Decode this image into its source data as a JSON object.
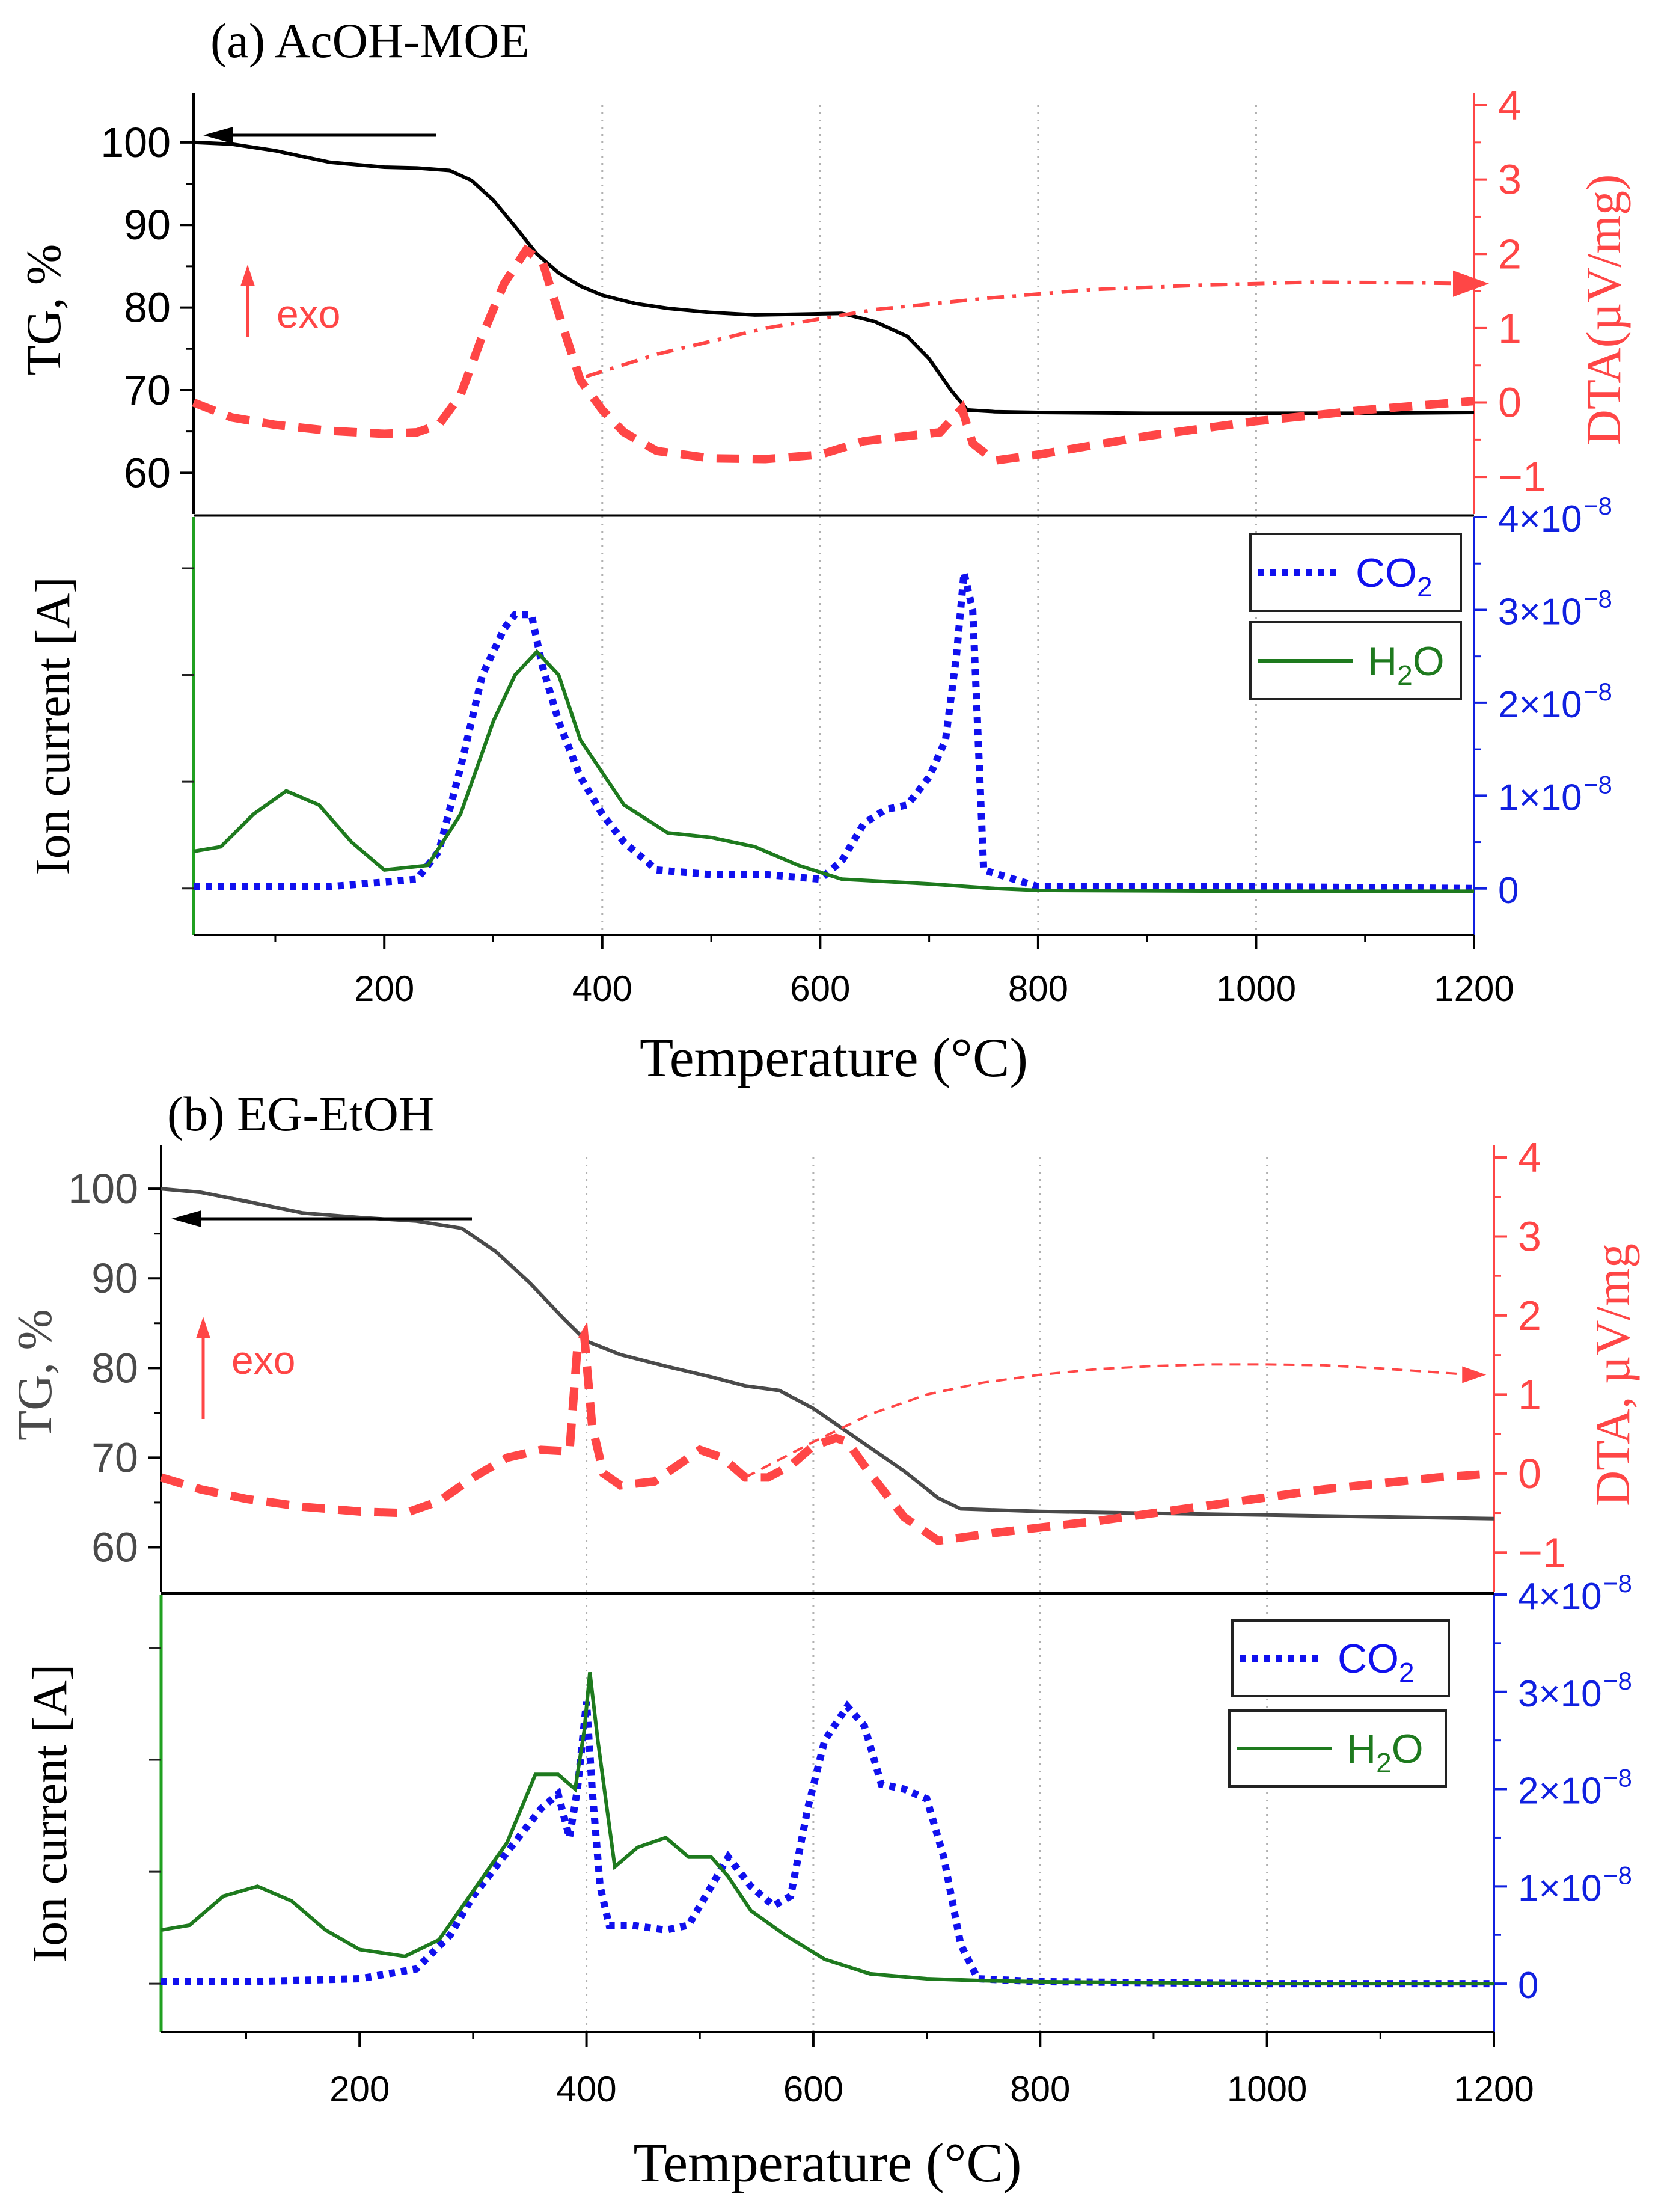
{
  "colors": {
    "tg": "#000000",
    "tg_b": "#4a4a4a",
    "dta": "#ff4646",
    "co2": "#1010ee",
    "h2o": "#1e7a1e",
    "axis_green": "#20a020",
    "axis_blue": "#1020e0",
    "grid": "#b0b0b0"
  },
  "panels": [
    {
      "title": "(a) AcOH-MOE",
      "xlabel": "Temperature (°C)",
      "x_ticks": [
        "200",
        "400",
        "600",
        "800",
        "1000",
        "1200"
      ],
      "tg_axis": {
        "label": "TG, %",
        "ticks": [
          "60",
          "70",
          "80",
          "90",
          "100"
        ]
      },
      "dta_axis": {
        "label": "DTA(µV/mg)",
        "ticks": [
          "−1",
          "0",
          "1",
          "2",
          "3",
          "4"
        ]
      },
      "ion_axis": {
        "label": "Ion current [A]",
        "ticks": [
          "0",
          "1×10",
          "2×10",
          "3×10",
          "4×10"
        ],
        "exponent": "−8"
      },
      "exo_label": "exo",
      "legend": {
        "co2": "CO",
        "co2_sub": "2",
        "h2o_pre": "H",
        "h2o_sub": "2",
        "h2o_post": "O"
      }
    },
    {
      "title": "(b) EG-EtOH",
      "xlabel": "Temperature (°C)",
      "x_ticks": [
        "200",
        "400",
        "600",
        "800",
        "1000",
        "1200"
      ],
      "tg_axis": {
        "label": "TG, %",
        "ticks": [
          "60",
          "70",
          "80",
          "90",
          "100"
        ]
      },
      "dta_axis": {
        "label": "DTA, µV/mg",
        "ticks": [
          "−1",
          "0",
          "1",
          "2",
          "3",
          "4"
        ]
      },
      "ion_axis": {
        "label": "Ion current [A]",
        "ticks": [
          "0",
          "1×10",
          "2×10",
          "3×10",
          "4×10"
        ],
        "exponent": "−8"
      },
      "exo_label": "exo",
      "legend": {
        "co2": "CO",
        "co2_sub": "2",
        "h2o_pre": "H",
        "h2o_sub": "2",
        "h2o_post": "O"
      }
    }
  ],
  "chart_data": [
    {
      "type": "line",
      "title": "(a) AcOH-MOE — TG / DTA",
      "xlabel": "Temperature (°C)",
      "xlim": [
        25,
        1200
      ],
      "ylim_left": [
        55,
        104.5
      ],
      "ylim_right": [
        -1.5,
        4
      ],
      "series": [
        {
          "name": "TG",
          "axis": "left",
          "style": "solid",
          "x": [
            25,
            60,
            100,
            150,
            200,
            230,
            260,
            280,
            300,
            320,
            340,
            360,
            380,
            400,
            430,
            460,
            500,
            540,
            580,
            620,
            650,
            680,
            700,
            720,
            735,
            760,
            800,
            900,
            1000,
            1100,
            1200
          ],
          "y": [
            100,
            99.8,
            99,
            97.6,
            97.0,
            96.9,
            96.6,
            95.4,
            93.0,
            89.8,
            86.5,
            84.2,
            82.6,
            81.5,
            80.5,
            79.9,
            79.4,
            79.1,
            79.2,
            79.3,
            78.3,
            76.5,
            73.8,
            70.0,
            67.6,
            67.4,
            67.3,
            67.2,
            67.2,
            67.2,
            67.3
          ]
        },
        {
          "name": "DTA",
          "axis": "right",
          "style": "dashed",
          "x": [
            25,
            60,
            100,
            150,
            200,
            230,
            250,
            270,
            290,
            310,
            330,
            345,
            360,
            380,
            400,
            420,
            450,
            500,
            550,
            600,
            640,
            680,
            710,
            730,
            740,
            760,
            800,
            900,
            1000,
            1100,
            1200
          ],
          "y": [
            0,
            -0.2,
            -0.3,
            -0.38,
            -0.42,
            -0.4,
            -0.3,
            0.1,
            0.9,
            1.6,
            2.05,
            1.9,
            1.2,
            0.3,
            -0.1,
            -0.4,
            -0.65,
            -0.75,
            -0.76,
            -0.7,
            -0.52,
            -0.45,
            -0.4,
            -0.08,
            -0.55,
            -0.78,
            -0.7,
            -0.45,
            -0.25,
            -0.1,
            0.02
          ]
        },
        {
          "name": "DTA baseline",
          "axis": "right",
          "style": "dash-dot",
          "x": [
            385,
            450,
            550,
            650,
            750,
            850,
            950,
            1050,
            1150,
            1200
          ],
          "y": [
            0.35,
            0.65,
            1.0,
            1.25,
            1.4,
            1.52,
            1.58,
            1.62,
            1.61,
            1.6
          ]
        }
      ]
    },
    {
      "type": "line",
      "title": "(a) AcOH-MOE — Ion current",
      "xlabel": "Temperature (°C)",
      "xlim": [
        25,
        1200
      ],
      "ylim": [
        -5e-09,
        4e-08
      ],
      "series": [
        {
          "name": "CO2",
          "style": "dotted",
          "x": [
            25,
            150,
            230,
            250,
            270,
            290,
            310,
            320,
            335,
            345,
            360,
            380,
            400,
            420,
            450,
            500,
            550,
            600,
            620,
            640,
            660,
            680,
            700,
            715,
            725,
            732,
            740,
            750,
            800,
            1000,
            1200
          ],
          "y": [
            2e-10,
            2e-10,
            1e-09,
            4e-09,
            1.3e-08,
            2.3e-08,
            2.8e-08,
            2.95e-08,
            2.95e-08,
            2.4e-08,
            1.8e-08,
            1.2e-08,
            8e-09,
            5e-09,
            2e-09,
            1.5e-09,
            1.5e-09,
            1e-09,
            3e-09,
            7e-09,
            8.5e-09,
            9e-09,
            1.2e-08,
            1.6e-08,
            2.5e-08,
            3.4e-08,
            3e-08,
            2e-09,
            2e-10,
            2e-10,
            0.0
          ]
        },
        {
          "name": "H2O",
          "style": "solid",
          "x": [
            25,
            50,
            80,
            110,
            140,
            170,
            200,
            240,
            270,
            300,
            320,
            340,
            360,
            380,
            420,
            460,
            500,
            540,
            580,
            620,
            700,
            760,
            800,
            1000,
            1200
          ],
          "y": [
            4e-09,
            4.5e-09,
            8e-09,
            1.05e-08,
            9e-09,
            5e-09,
            2e-09,
            2.5e-09,
            8e-09,
            1.8e-08,
            2.3e-08,
            2.55e-08,
            2.3e-08,
            1.6e-08,
            9e-09,
            6e-09,
            5.5e-09,
            4.5e-09,
            2.5e-09,
            1e-09,
            5e-10,
            0.0,
            -2e-10,
            -3e-10,
            -3e-10
          ]
        }
      ]
    },
    {
      "type": "line",
      "title": "(b) EG-EtOH — TG / DTA",
      "xlabel": "Temperature (°C)",
      "xlim": [
        25,
        1200
      ],
      "ylim_left": [
        55,
        103.5
      ],
      "ylim_right": [
        -1.5,
        4
      ],
      "series": [
        {
          "name": "TG",
          "axis": "left",
          "style": "solid",
          "x": [
            25,
            60,
            100,
            150,
            200,
            250,
            290,
            320,
            350,
            380,
            400,
            430,
            470,
            510,
            540,
            570,
            600,
            640,
            680,
            710,
            730,
            800,
            900,
            1000,
            1100,
            1200
          ],
          "y": [
            100,
            99.6,
            98.6,
            97.3,
            96.8,
            96.4,
            95.6,
            93.0,
            89.5,
            85.5,
            83.0,
            81.5,
            80.2,
            79.0,
            78.0,
            77.5,
            75.5,
            72.0,
            68.5,
            65.5,
            64.3,
            64.0,
            63.8,
            63.6,
            63.4,
            63.2
          ]
        },
        {
          "name": "DTA",
          "axis": "right",
          "style": "dashed",
          "x": [
            25,
            60,
            100,
            150,
            200,
            240,
            270,
            300,
            330,
            360,
            385,
            392,
            398,
            405,
            415,
            430,
            460,
            500,
            520,
            540,
            560,
            580,
            600,
            620,
            630,
            650,
            680,
            710,
            760,
            850,
            950,
            1050,
            1150,
            1200
          ],
          "y": [
            -0.05,
            -0.2,
            -0.32,
            -0.42,
            -0.48,
            -0.5,
            -0.35,
            -0.05,
            0.2,
            0.3,
            0.28,
            1.6,
            1.75,
            0.6,
            0.0,
            -0.15,
            -0.1,
            0.3,
            0.2,
            -0.05,
            -0.05,
            0.1,
            0.35,
            0.45,
            0.4,
            0.0,
            -0.55,
            -0.85,
            -0.75,
            -0.6,
            -0.4,
            -0.2,
            -0.05,
            0.0
          ]
        },
        {
          "name": "DTA baseline",
          "axis": "right",
          "style": "dashed-thin",
          "x": [
            540,
            600,
            650,
            700,
            750,
            800,
            850,
            900,
            950,
            1000,
            1050,
            1100,
            1150,
            1180
          ],
          "y": [
            -0.05,
            0.4,
            0.75,
            1.0,
            1.15,
            1.25,
            1.32,
            1.36,
            1.38,
            1.38,
            1.37,
            1.33,
            1.28,
            1.25
          ]
        }
      ]
    },
    {
      "type": "line",
      "title": "(b) EG-EtOH — Ion current",
      "xlabel": "Temperature (°C)",
      "xlim": [
        25,
        1200
      ],
      "ylim": [
        -5e-09,
        4e-08
      ],
      "series": [
        {
          "name": "CO2",
          "style": "dotted",
          "x": [
            25,
            100,
            200,
            250,
            280,
            300,
            320,
            340,
            360,
            375,
            385,
            392,
            400,
            405,
            412,
            420,
            440,
            470,
            490,
            510,
            525,
            545,
            565,
            580,
            595,
            610,
            630,
            645,
            660,
            680,
            700,
            715,
            730,
            745,
            800,
            1000,
            1200
          ],
          "y": [
            2e-10,
            2e-10,
            5e-10,
            1.5e-09,
            5e-09,
            9e-09,
            1.2e-08,
            1.5e-08,
            1.8e-08,
            1.95e-08,
            1.5e-08,
            2e-08,
            2.9e-08,
            2e-08,
            1e-08,
            6e-09,
            6e-09,
            5.5e-09,
            6e-09,
            1e-08,
            1.3e-08,
            1e-08,
            8e-09,
            9e-09,
            1.8e-08,
            2.5e-08,
            2.85e-08,
            2.65e-08,
            2.05e-08,
            2e-08,
            1.9e-08,
            1.3e-08,
            4e-09,
            5e-10,
            2e-10,
            0.0,
            0.0
          ]
        },
        {
          "name": "H2O",
          "style": "solid",
          "x": [
            25,
            50,
            80,
            110,
            140,
            170,
            200,
            240,
            270,
            300,
            330,
            355,
            375,
            390,
            398,
            403,
            410,
            425,
            445,
            470,
            490,
            510,
            525,
            545,
            575,
            610,
            650,
            700,
            750,
            800,
            1000,
            1200
          ],
          "y": [
            5.5e-09,
            6e-09,
            9e-09,
            1e-08,
            8.5e-09,
            5.5e-09,
            3.5e-09,
            2.8e-09,
            4.5e-09,
            9.5e-09,
            1.45e-08,
            2.15e-08,
            2.15e-08,
            2e-08,
            2.6e-08,
            3.2e-08,
            2.5e-08,
            1.2e-08,
            1.4e-08,
            1.5e-08,
            1.3e-08,
            1.3e-08,
            1.1e-08,
            7.5e-09,
            5e-09,
            2.5e-09,
            1e-09,
            5e-10,
            3e-10,
            2e-10,
            0.0,
            0.0
          ]
        }
      ]
    }
  ]
}
